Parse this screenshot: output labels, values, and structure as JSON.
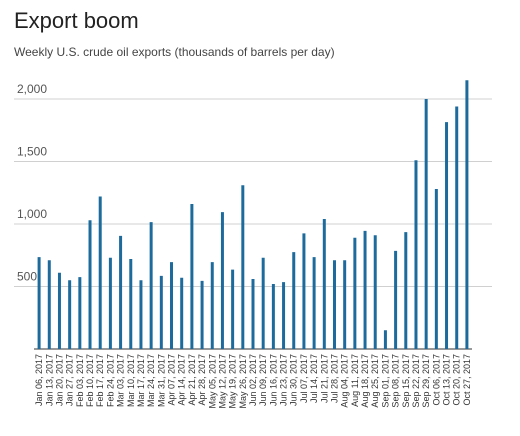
{
  "chart_data": {
    "type": "bar",
    "title": "Export boom",
    "subtitle": "Weekly U.S. crude oil exports (thousands of barrels per day)",
    "categories": [
      "Jan 06, 2017",
      "Jan 13, 2017",
      "Jan 20, 2017",
      "Jan 27, 2017",
      "Feb 03, 2017",
      "Feb 10, 2017",
      "Feb 17, 2017",
      "Feb 24, 2017",
      "Mar 03, 2017",
      "Mar 10, 2017",
      "Mar 17, 2017",
      "Mar 24, 2017",
      "Mar 31, 2017",
      "Apr 07, 2017",
      "Apr 14, 2017",
      "Apr 21, 2017",
      "Apr 28, 2017",
      "May 05, 2017",
      "May 12, 2017",
      "May 19, 2017",
      "May 26, 2017",
      "Jun 02, 2017",
      "Jun 09, 2017",
      "Jun 16, 2017",
      "Jun 23, 2017",
      "Jun 30, 2017",
      "Jul 07, 2017",
      "Jul 14, 2017",
      "Jul 21, 2017",
      "Jul 28, 2017",
      "Aug 04, 2017",
      "Aug 11, 2017",
      "Aug 18, 2017",
      "Aug 25, 2017",
      "Sep 01, 2017",
      "Sep 08, 2017",
      "Sep 15, 2017",
      "Sep 22, 2017",
      "Sep 29, 2017",
      "Oct 06, 2017",
      "Oct 13, 2017",
      "Oct 20, 2017",
      "Oct 27, 2017"
    ],
    "values": [
      735,
      710,
      610,
      550,
      575,
      1030,
      1220,
      730,
      905,
      720,
      550,
      1015,
      585,
      695,
      570,
      1160,
      545,
      695,
      1095,
      635,
      1310,
      560,
      730,
      520,
      535,
      775,
      925,
      735,
      1040,
      710,
      710,
      890,
      945,
      910,
      150,
      785,
      935,
      1510,
      2000,
      1280,
      1815,
      1940,
      2150
    ],
    "color": "#1d6b9c",
    "ylim": [
      0,
      2200
    ],
    "yticks": [
      500,
      {
        "value": 1000,
        "label": "1,000"
      },
      {
        "value": 1500,
        "label": "1,500"
      },
      {
        "value": 2000,
        "label": "2,000"
      }
    ],
    "grid": true
  }
}
